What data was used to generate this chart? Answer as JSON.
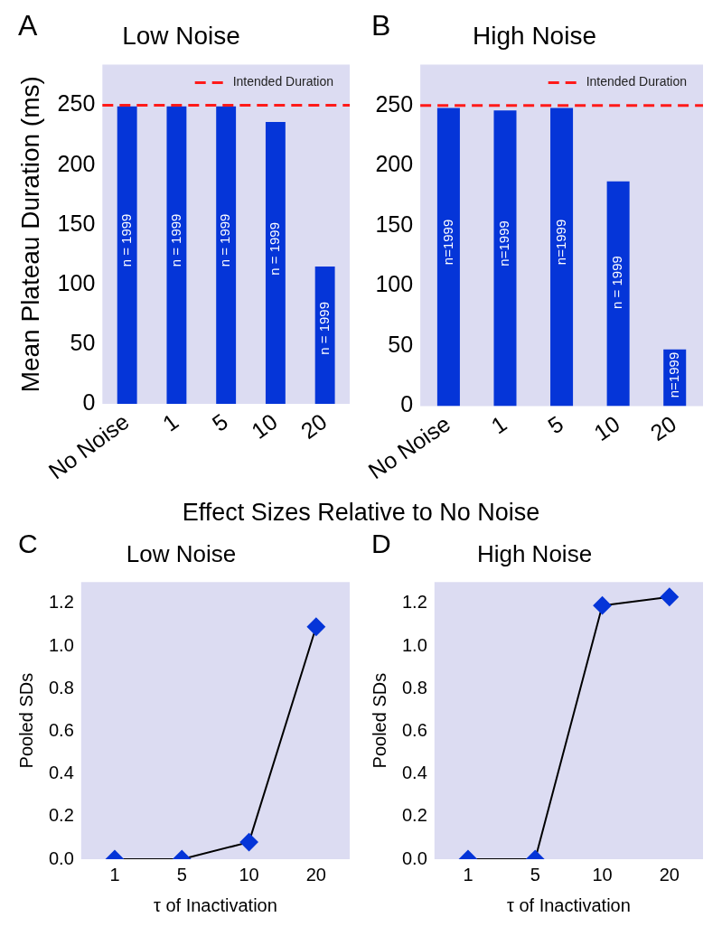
{
  "chart_data": [
    {
      "type": "bar",
      "title": "Low Noise",
      "ylabel": "Mean Plateau Duration (ms)",
      "categories": [
        "No Noise",
        "1",
        "5",
        "10",
        "20"
      ],
      "annotations": [
        "A",
        "n = 1999",
        "n = 1999",
        "n = 1999",
        "n = 1999",
        "n = 1999"
      ],
      "series": [
        {
          "color": "#0535d8",
          "values": [
            249,
            249,
            249,
            236,
            115
          ]
        }
      ],
      "ylim": [
        0,
        284
      ],
      "yticks": [
        0,
        50,
        100,
        150,
        200,
        250
      ],
      "ref_lines": [
        {
          "axis": "y",
          "value": 250,
          "label": "Intended Duration",
          "color": "#ff1a1a",
          "line_style": "dashed"
        }
      ],
      "legend": "top right"
    },
    {
      "type": "bar",
      "title": "High Noise",
      "categories": [
        "No Noise",
        "1",
        "5",
        "10",
        "20"
      ],
      "annotations": [
        "B",
        "n=1999",
        "n=1999",
        "n=1999",
        "n = 1999",
        "n=1999"
      ],
      "series": [
        {
          "color": "#0535d8",
          "values": [
            248,
            246,
            248,
            187,
            47
          ]
        }
      ],
      "ylim": [
        0,
        284
      ],
      "yticks": [
        0,
        50,
        100,
        150,
        200,
        250
      ],
      "ref_lines": [
        {
          "axis": "y",
          "value": 250,
          "label": "Intended Duration",
          "color": "#ff1a1a",
          "line_style": "dashed"
        }
      ],
      "legend": "top right"
    },
    {
      "type": "line",
      "title": "Low Noise",
      "subtitle": "Effect Sizes Relative to No Noise",
      "annotations": [
        "C"
      ],
      "xlabel": "τ of Inactivation",
      "ylabel": "Pooled SDs",
      "categories": [
        "1",
        "5",
        "10",
        "20"
      ],
      "series": [
        {
          "color": "#000000",
          "colors": [
            "#0535d8",
            "#0535d8",
            "#0535d8",
            "#0535d8"
          ],
          "values": [
            0,
            0,
            0.08,
            1.09
          ]
        }
      ],
      "ylim": [
        0,
        1.3
      ],
      "yticks": [
        {
          "value": 0,
          "label": "0.0"
        },
        {
          "value": 0.2,
          "label": "0.2"
        },
        {
          "value": 0.4,
          "label": "0.4"
        },
        {
          "value": 0.6,
          "label": "0.6"
        },
        {
          "value": 0.8,
          "label": "0.8"
        },
        {
          "value": 1,
          "label": "1.0"
        },
        {
          "value": 1.2,
          "label": "1.2"
        }
      ],
      "marker": "diamond"
    },
    {
      "type": "line",
      "title": "High Noise",
      "annotations": [
        "D"
      ],
      "xlabel": "τ of Inactivation",
      "ylabel": "Pooled SDs",
      "categories": [
        "1",
        "5",
        "10",
        "20"
      ],
      "series": [
        {
          "color": "#000000",
          "colors": [
            "#0535d8",
            "#0535d8",
            "#0535d8",
            "#0535d8"
          ],
          "values": [
            0,
            0,
            1.19,
            1.23
          ]
        }
      ],
      "ylim": [
        0,
        1.3
      ],
      "yticks": [
        {
          "value": 0,
          "label": "0.0"
        },
        {
          "value": 0.2,
          "label": "0.2"
        },
        {
          "value": 0.4,
          "label": "0.4"
        },
        {
          "value": 0.6,
          "label": "0.6"
        },
        {
          "value": 0.8,
          "label": "0.8"
        },
        {
          "value": 1,
          "label": "1.0"
        },
        {
          "value": 1.2,
          "label": "1.2"
        }
      ],
      "marker": "diamond"
    }
  ]
}
